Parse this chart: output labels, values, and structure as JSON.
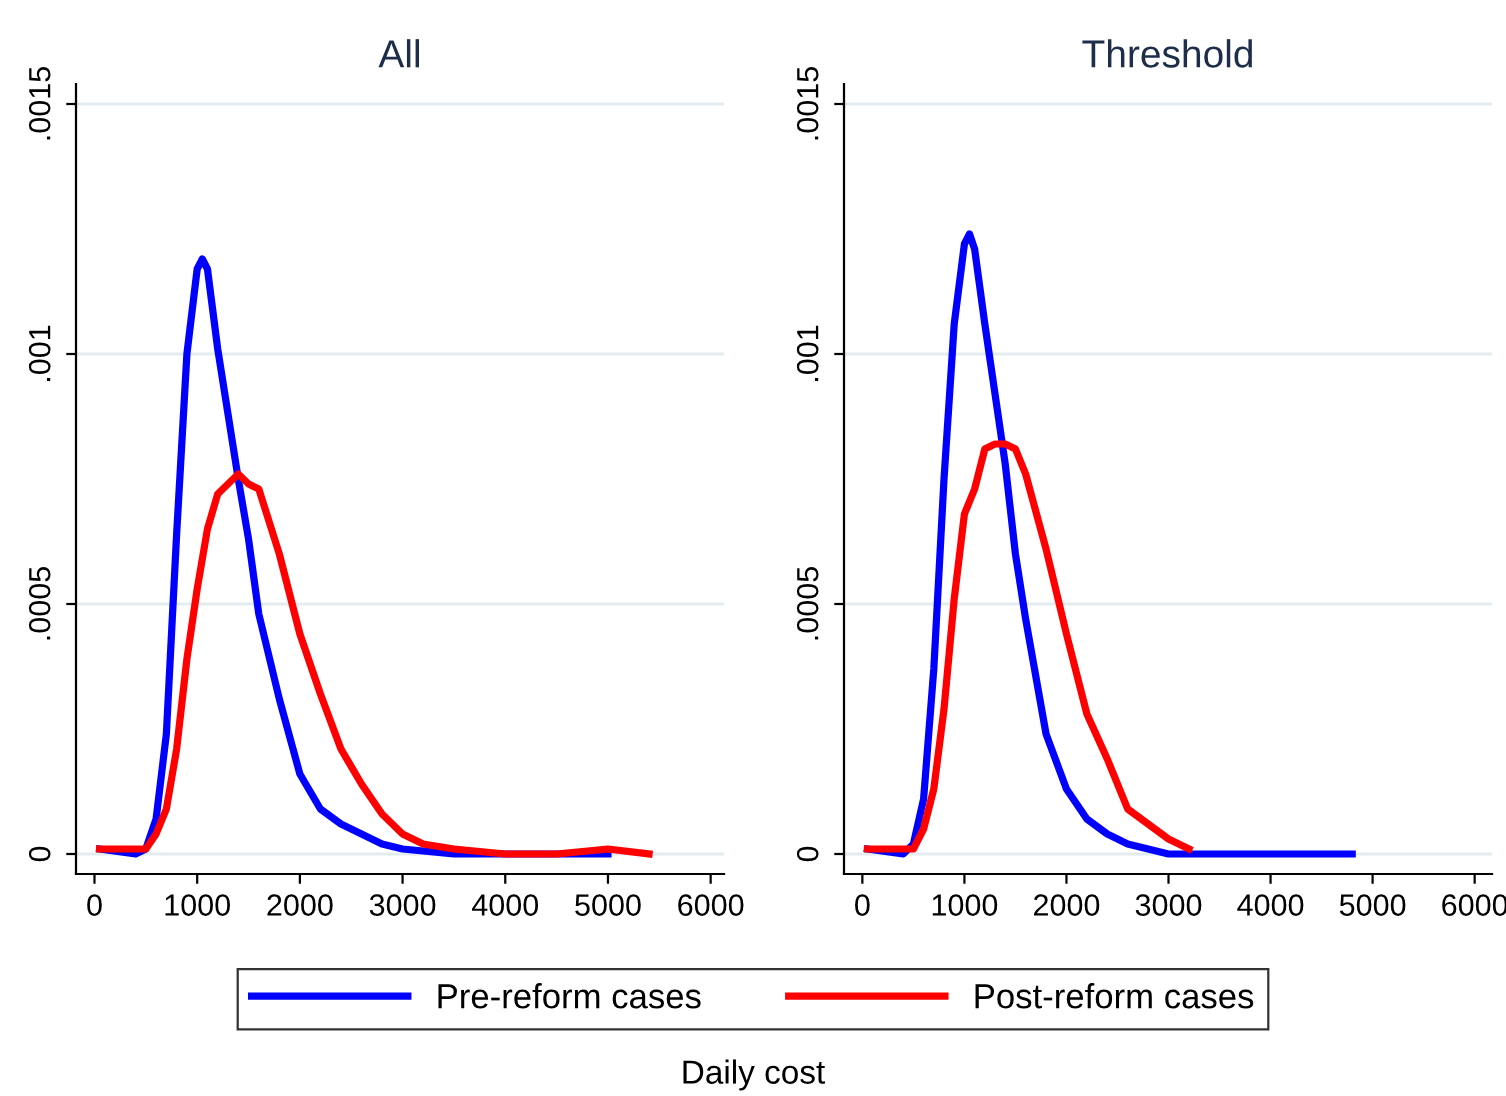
{
  "chart_data": [
    {
      "type": "line",
      "title": "All",
      "xlabel": "Daily cost",
      "legend": "bottom",
      "grid": "y",
      "xlim": [
        -180,
        6130
      ],
      "xticks": [
        0,
        1000,
        2000,
        3000,
        4000,
        5000,
        6000
      ],
      "ylim": [
        -4e-05,
        0.00154
      ],
      "yticks": [
        {
          "value": 0,
          "label": "0"
        },
        {
          "value": 0.0005,
          "label": ".0005"
        },
        {
          "value": 0.001,
          "label": ".001"
        },
        {
          "value": 0.0015,
          "label": ".0015"
        }
      ],
      "series": [
        {
          "name": "Pre-reform cases",
          "color": "#0000ff",
          "x": [
            50,
            400,
            500,
            600,
            700,
            800,
            900,
            1000,
            1050,
            1100,
            1200,
            1300,
            1400,
            1500,
            1600,
            1800,
            2000,
            2200,
            2400,
            2600,
            2800,
            3000,
            3500,
            4000,
            5000
          ],
          "values": [
            1e-05,
            0,
            1e-05,
            7e-05,
            0.00024,
            0.00064,
            0.001,
            0.00117,
            0.00119,
            0.00117,
            0.00101,
            0.00088,
            0.00075,
            0.00063,
            0.00048,
            0.00031,
            0.00016,
            9e-05,
            6e-05,
            4e-05,
            2e-05,
            1e-05,
            0,
            0,
            0
          ]
        },
        {
          "name": "Post-reform cases",
          "color": "#ff0000",
          "x": [
            50,
            400,
            500,
            600,
            700,
            800,
            900,
            1000,
            1100,
            1200,
            1300,
            1400,
            1500,
            1600,
            1800,
            2000,
            2200,
            2400,
            2600,
            2800,
            3000,
            3200,
            3500,
            4000,
            4500,
            5000,
            5400
          ],
          "values": [
            1e-05,
            1e-05,
            1e-05,
            4e-05,
            9e-05,
            0.00021,
            0.00039,
            0.00053,
            0.00065,
            0.00072,
            0.00074,
            0.00076,
            0.00074,
            0.00073,
            0.0006,
            0.00044,
            0.00032,
            0.00021,
            0.00014,
            8e-05,
            4e-05,
            2e-05,
            1e-05,
            0,
            0,
            1e-05,
            0
          ]
        }
      ]
    },
    {
      "type": "line",
      "title": "Threshold",
      "grid": "y",
      "xlim": [
        -180,
        6170
      ],
      "xticks": [
        0,
        1000,
        2000,
        3000,
        4000,
        5000,
        6000
      ],
      "ylim": [
        -4e-05,
        0.00154
      ],
      "yticks": [
        {
          "value": 0,
          "label": "0"
        },
        {
          "value": 0.0005,
          "label": ".0005"
        },
        {
          "value": 0.001,
          "label": ".001"
        },
        {
          "value": 0.0015,
          "label": ".0015"
        }
      ],
      "series": [
        {
          "color": "#0000ff",
          "x": [
            50,
            400,
            500,
            600,
            700,
            800,
            900,
            1000,
            1050,
            1100,
            1200,
            1300,
            1400,
            1500,
            1600,
            1800,
            2000,
            2200,
            2400,
            2600,
            2800,
            3000,
            4000,
            4800
          ],
          "values": [
            1e-05,
            0,
            2e-05,
            0.00011,
            0.00037,
            0.00075,
            0.00106,
            0.00122,
            0.00124,
            0.00121,
            0.00106,
            0.00092,
            0.00078,
            0.0006,
            0.00047,
            0.00024,
            0.00013,
            7e-05,
            4e-05,
            2e-05,
            1e-05,
            0,
            0,
            0
          ]
        },
        {
          "color": "#ff0000",
          "x": [
            50,
            200,
            400,
            500,
            600,
            700,
            800,
            900,
            1000,
            1100,
            1200,
            1300,
            1400,
            1500,
            1600,
            1800,
            2000,
            2200,
            2400,
            2600,
            2800,
            3000,
            3200
          ],
          "values": [
            1e-05,
            1e-05,
            1e-05,
            1e-05,
            5e-05,
            0.00013,
            0.00029,
            0.00051,
            0.00068,
            0.00073,
            0.00081,
            0.00082,
            0.00082,
            0.00081,
            0.00076,
            0.00061,
            0.00044,
            0.00028,
            0.00019,
            9e-05,
            6e-05,
            3e-05,
            1e-05
          ]
        }
      ]
    }
  ]
}
